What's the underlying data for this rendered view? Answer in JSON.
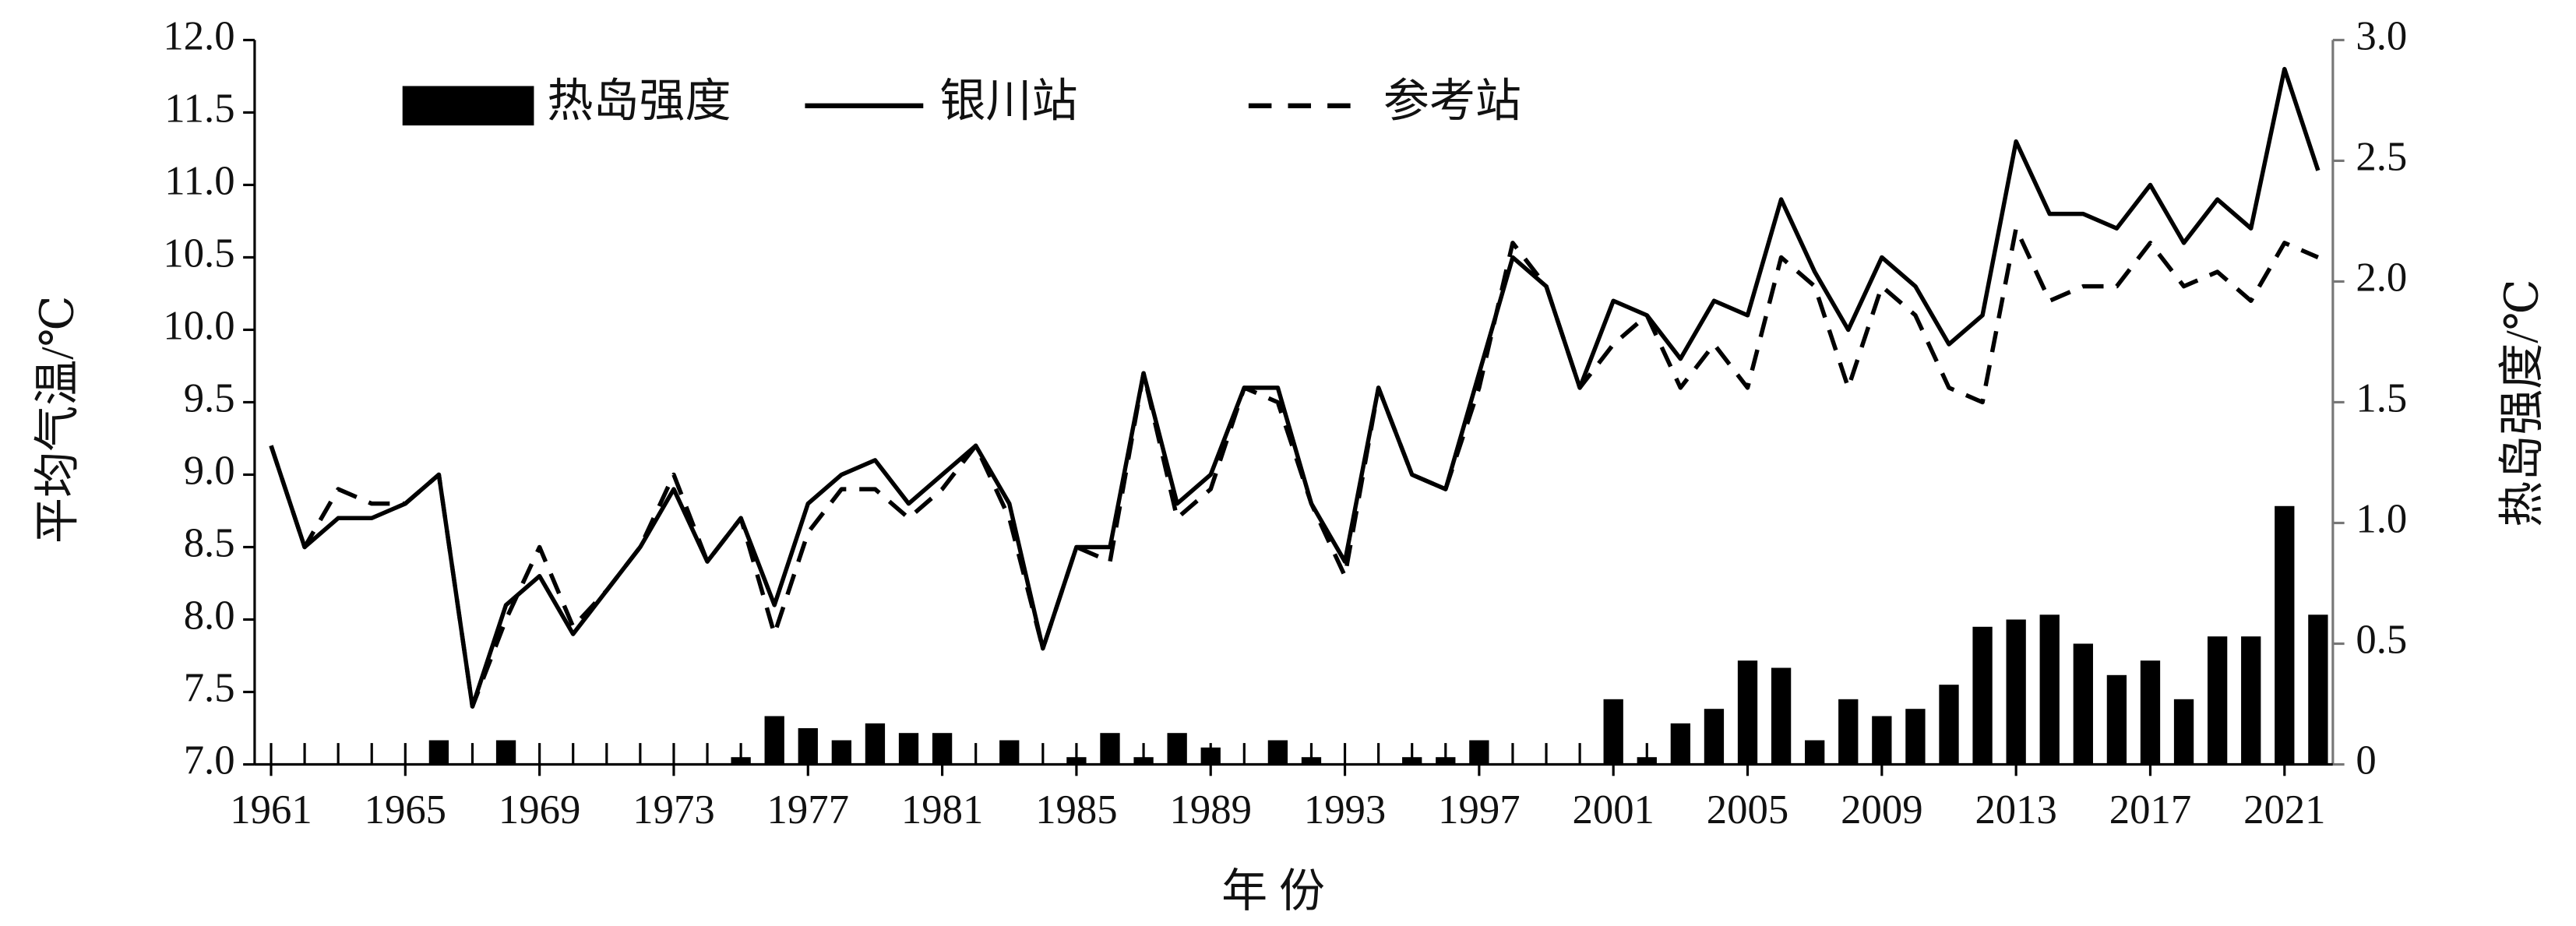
{
  "chart_data": {
    "type": "combo",
    "xlabel": "年 份",
    "ylabel": "平均气温/℃",
    "y2label": "热岛强度/℃",
    "categories": [
      "1961",
      null,
      null,
      null,
      "1965",
      null,
      null,
      null,
      "1969",
      null,
      null,
      null,
      "1973",
      null,
      null,
      null,
      "1977",
      null,
      null,
      null,
      "1981",
      null,
      null,
      null,
      "1985",
      null,
      null,
      null,
      "1989",
      null,
      null,
      null,
      "1993",
      null,
      null,
      null,
      "1997",
      null,
      null,
      null,
      "2001",
      null,
      null,
      null,
      "2005",
      null,
      null,
      null,
      "2009",
      null,
      null,
      null,
      "2013",
      null,
      null,
      null,
      "2017",
      null,
      null,
      null,
      "2021",
      null
    ],
    "ylim": [
      7,
      12
    ],
    "yticks": [
      {
        "value": 7,
        "label": "7.0"
      },
      {
        "value": 7.5,
        "label": "7.5"
      },
      {
        "value": 8,
        "label": "8.0"
      },
      {
        "value": 8.5,
        "label": "8.5"
      },
      {
        "value": 9,
        "label": "9.0"
      },
      {
        "value": 9.5,
        "label": "9.5"
      },
      {
        "value": 10,
        "label": "10.0"
      },
      {
        "value": 10.5,
        "label": "10.5"
      },
      {
        "value": 11,
        "label": "11.0"
      },
      {
        "value": 11.5,
        "label": "11.5"
      },
      {
        "value": 12,
        "label": "12.0"
      }
    ],
    "y2lim": [
      0,
      3
    ],
    "y2ticks": [
      0,
      0.5,
      {
        "value": 1,
        "label": "1.0"
      },
      1.5,
      {
        "value": 2,
        "label": "2.0"
      },
      2.5,
      {
        "value": 3,
        "label": "3.0"
      }
    ],
    "series": [
      {
        "name": "热岛强度",
        "type": "bar",
        "axis": "y2",
        "color": "#000000",
        "values": [
          0,
          0,
          0,
          0,
          0,
          0.1,
          0,
          0.1,
          0,
          0,
          0,
          0,
          0,
          0,
          0.03,
          0.2,
          0.15,
          0.1,
          0.17,
          0.13,
          0.13,
          0,
          0.1,
          0,
          0.03,
          0.13,
          0.03,
          0.13,
          0.07,
          0,
          0.1,
          0.03,
          0,
          0,
          0.03,
          0.03,
          0.1,
          0,
          0,
          0,
          0.27,
          0.03,
          0.17,
          0.23,
          0.43,
          0.4,
          0.1,
          0.27,
          0.2,
          0.23,
          0.33,
          0.57,
          0.6,
          0.62,
          0.5,
          0.37,
          0.43,
          0.27,
          0.53,
          0.53,
          1.07,
          0.62
        ]
      },
      {
        "name": "银川站",
        "type": "line",
        "color": "#000000",
        "dash": "solid",
        "values": [
          9.2,
          8.5,
          8.7,
          8.7,
          8.8,
          9.0,
          7.4,
          8.1,
          8.3,
          7.9,
          8.2,
          8.5,
          8.9,
          8.4,
          8.7,
          8.1,
          8.8,
          9.0,
          9.1,
          8.8,
          9.0,
          9.2,
          8.8,
          7.8,
          8.5,
          8.5,
          9.7,
          8.8,
          9.0,
          9.6,
          9.6,
          8.8,
          8.4,
          9.6,
          9.0,
          8.9,
          9.7,
          10.5,
          10.3,
          9.6,
          10.2,
          10.1,
          9.8,
          10.2,
          10.1,
          10.9,
          10.4,
          10.0,
          10.5,
          10.3,
          9.9,
          10.1,
          11.3,
          10.8,
          10.8,
          10.7,
          11.0,
          10.6,
          10.9,
          10.7,
          11.8,
          11.1
        ]
      },
      {
        "name": "参考站",
        "type": "line",
        "color": "#000000",
        "dash": "dashed",
        "values": [
          9.2,
          8.5,
          8.9,
          8.8,
          8.8,
          9.0,
          7.4,
          8.0,
          8.5,
          7.95,
          8.2,
          8.5,
          9.0,
          8.4,
          8.7,
          7.9,
          8.6,
          8.9,
          8.9,
          8.7,
          8.9,
          9.2,
          8.7,
          7.8,
          8.5,
          8.4,
          9.7,
          8.7,
          8.9,
          9.6,
          9.5,
          8.8,
          8.3,
          9.6,
          9.0,
          8.9,
          9.6,
          10.6,
          10.3,
          9.6,
          9.9,
          10.1,
          9.6,
          9.9,
          9.6,
          10.5,
          10.3,
          9.6,
          10.3,
          10.1,
          9.6,
          9.5,
          10.7,
          10.2,
          10.3,
          10.3,
          10.6,
          10.3,
          10.4,
          10.2,
          10.6,
          10.5
        ]
      }
    ]
  }
}
